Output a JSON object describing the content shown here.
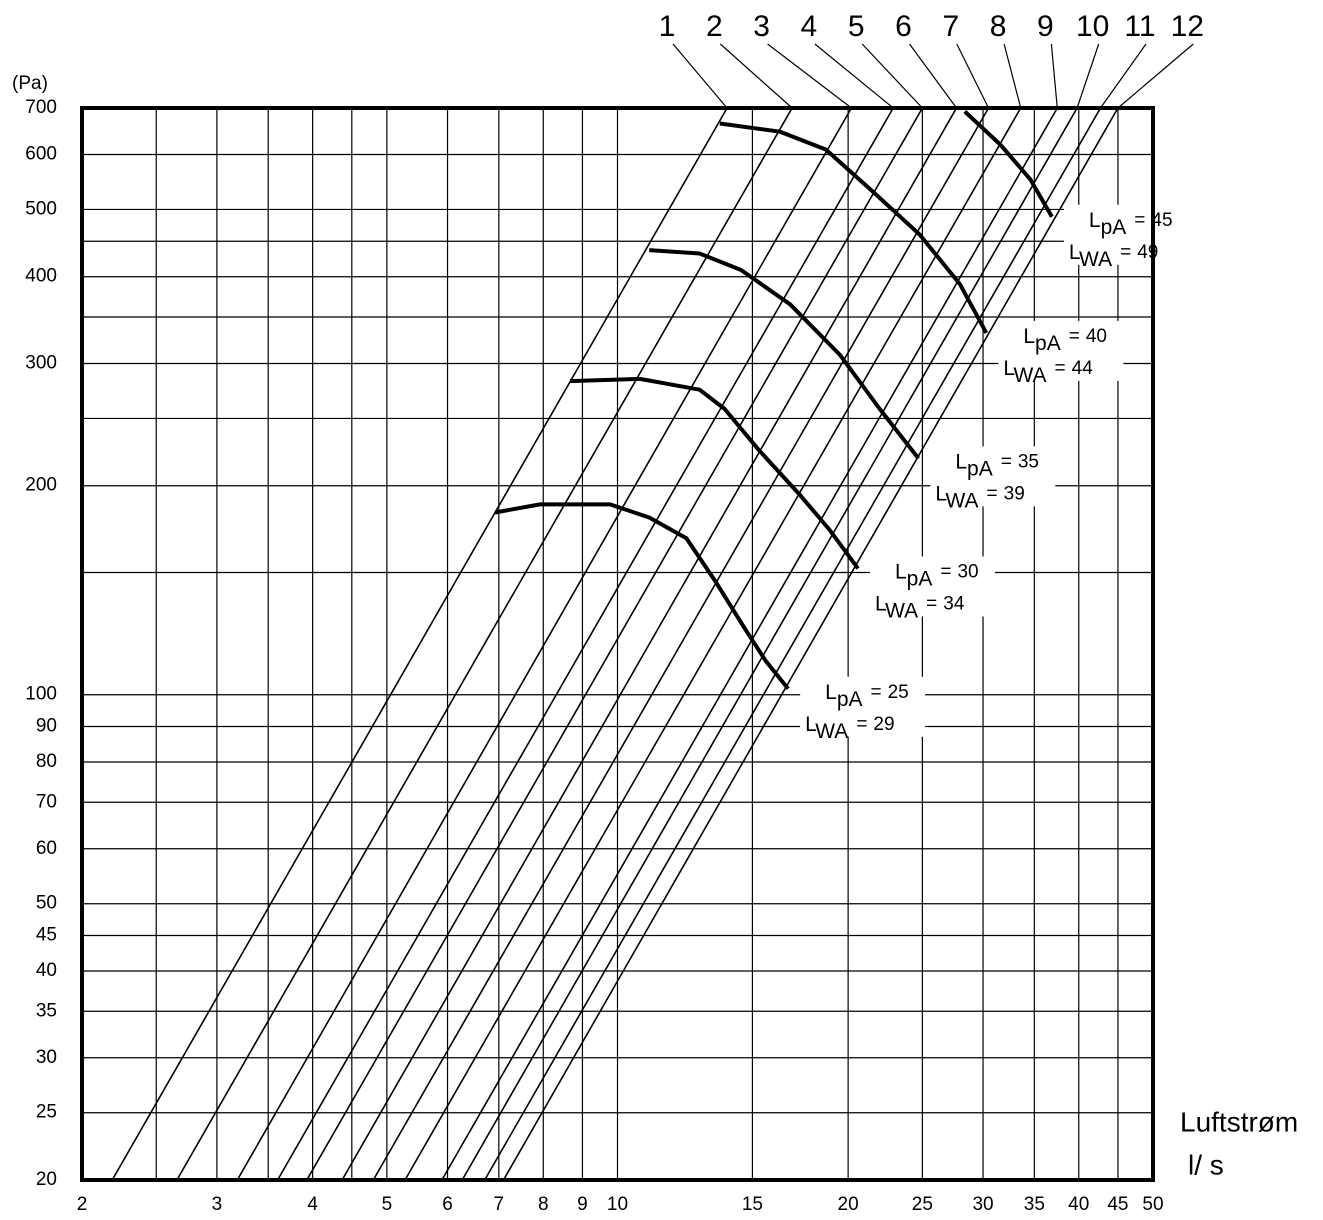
{
  "chart_data": {
    "type": "line",
    "y_label": "(Pa)",
    "x_label": "Luftstrøm",
    "x_unit": "l/ s",
    "log_x": true,
    "log_y": true,
    "grid": true,
    "xlim": [
      2,
      50
    ],
    "ylim": [
      20,
      700
    ],
    "xticks": [
      2,
      3,
      4,
      5,
      6,
      7,
      8,
      9,
      10,
      15,
      20,
      25,
      30,
      35,
      40,
      45,
      50
    ],
    "yticks": [
      20,
      25,
      30,
      35,
      40,
      45,
      50,
      60,
      70,
      80,
      90,
      100,
      200,
      300,
      400,
      500,
      600,
      700
    ],
    "x_minor_grid": [
      2.5,
      3.5,
      4.5
    ],
    "y_minor_grid": [
      150,
      250,
      350,
      450
    ],
    "series": [
      {
        "name": "1",
        "color": "#000000",
        "x": [
          2.19,
          13.9
        ],
        "y": [
          20,
          700
        ]
      },
      {
        "name": "2",
        "color": "#000000",
        "x": [
          2.66,
          16.9
        ],
        "y": [
          20,
          700
        ]
      },
      {
        "name": "3",
        "color": "#000000",
        "x": [
          3.19,
          20.2
        ],
        "y": [
          20,
          700
        ]
      },
      {
        "name": "4",
        "color": "#000000",
        "x": [
          3.6,
          22.9
        ],
        "y": [
          20,
          700
        ]
      },
      {
        "name": "5",
        "color": "#000000",
        "x": [
          3.93,
          25.0
        ],
        "y": [
          20,
          700
        ]
      },
      {
        "name": "6",
        "color": "#000000",
        "x": [
          4.37,
          27.7
        ],
        "y": [
          20,
          700
        ]
      },
      {
        "name": "7",
        "color": "#000000",
        "x": [
          4.8,
          30.5
        ],
        "y": [
          20,
          700
        ]
      },
      {
        "name": "8",
        "color": "#000000",
        "x": [
          5.28,
          33.6
        ],
        "y": [
          20,
          700
        ]
      },
      {
        "name": "9",
        "color": "#000000",
        "x": [
          5.9,
          37.5
        ],
        "y": [
          20,
          700
        ]
      },
      {
        "name": "10",
        "color": "#000000",
        "x": [
          6.27,
          39.8
        ],
        "y": [
          20,
          700
        ]
      },
      {
        "name": "11",
        "color": "#000000",
        "x": [
          6.71,
          42.7
        ],
        "y": [
          20,
          700
        ]
      },
      {
        "name": "12",
        "color": "#000000",
        "x": [
          7.1,
          45.0
        ],
        "y": [
          20,
          700
        ]
      }
    ],
    "label_symbols": {
      "lpa": [
        "L",
        "pA"
      ],
      "lwa": [
        "L",
        "WA"
      ],
      "equals": "="
    },
    "noise_curves": [
      {
        "lpa": 25,
        "lwa": 29,
        "color": "#000000",
        "x": [
          6.92,
          7.92,
          9.78,
          11.0,
          12.3,
          13.4,
          14.7,
          15.6,
          16.7
        ],
        "y": [
          183,
          188,
          188,
          180,
          168,
          146,
          124,
          112,
          102
        ]
      },
      {
        "lpa": 30,
        "lwa": 34,
        "color": "#000000",
        "x": [
          8.67,
          10.7,
          12.8,
          13.8,
          15.3,
          17.3,
          18.9,
          20.6
        ],
        "y": [
          283,
          285,
          275,
          258,
          225,
          194,
          173,
          152
        ]
      },
      {
        "lpa": 35,
        "lwa": 39,
        "color": "#000000",
        "x": [
          11.0,
          12.8,
          14.5,
          16.8,
          19.5,
          22.0,
          24.7
        ],
        "y": [
          437,
          432,
          409,
          365,
          309,
          258,
          219
        ]
      },
      {
        "lpa": 40,
        "lwa": 44,
        "color": "#000000",
        "x": [
          13.6,
          16.3,
          18.7,
          21.4,
          24.8,
          28.0,
          30.3
        ],
        "y": [
          665,
          647,
          610,
          534,
          460,
          390,
          332
        ]
      },
      {
        "lpa": 45,
        "lwa": 49,
        "color": "#000000",
        "x": [
          28.4,
          31.6,
          34.6,
          36.9
        ],
        "y": [
          692,
          620,
          552,
          488
        ]
      }
    ]
  }
}
